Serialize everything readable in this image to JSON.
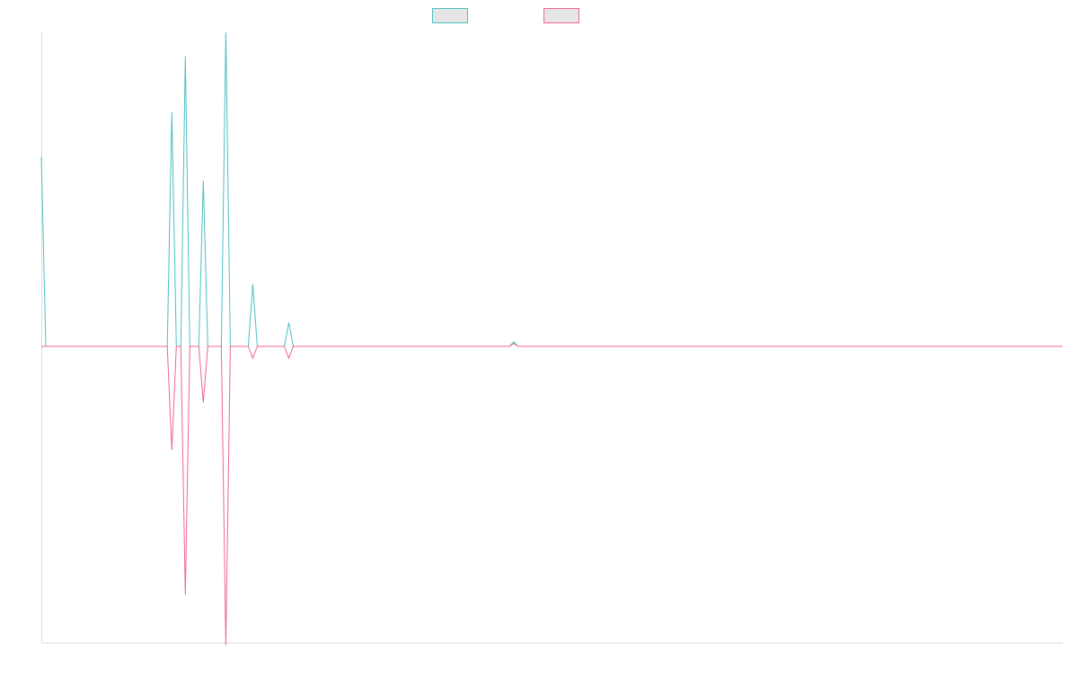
{
  "chart_data": {
    "type": "line",
    "title": "",
    "xlabel": "",
    "ylabel": "",
    "x_count": 228,
    "ylim": [
      -1,
      1
    ],
    "grid": false,
    "legend": "top-center",
    "series": [
      {
        "color": "#4bbfc3",
        "points": [
          [
            0,
            0.64
          ],
          [
            1,
            0
          ],
          [
            28,
            0
          ],
          [
            29,
            0.79
          ],
          [
            30,
            0
          ],
          [
            31,
            0
          ],
          [
            32,
            0.98
          ],
          [
            33,
            0
          ],
          [
            35,
            0
          ],
          [
            36,
            0.56
          ],
          [
            37,
            0
          ],
          [
            40,
            0
          ],
          [
            41,
            1.06
          ],
          [
            42,
            0
          ],
          [
            46,
            0
          ],
          [
            47,
            0.21
          ],
          [
            48,
            0
          ],
          [
            54,
            0
          ],
          [
            55,
            0.08
          ],
          [
            56,
            0
          ],
          [
            104,
            0
          ],
          [
            105,
            0.015
          ],
          [
            106,
            0
          ],
          [
            227,
            0
          ]
        ]
      },
      {
        "color": "#f0668a",
        "points": [
          [
            0,
            0
          ],
          [
            28,
            0
          ],
          [
            29,
            -0.35
          ],
          [
            30,
            0
          ],
          [
            31,
            0
          ],
          [
            32,
            -0.84
          ],
          [
            33,
            0
          ],
          [
            35,
            0
          ],
          [
            36,
            -0.19
          ],
          [
            37,
            0
          ],
          [
            40,
            0
          ],
          [
            41,
            -1.01
          ],
          [
            42,
            0
          ],
          [
            46,
            0
          ],
          [
            47,
            -0.04
          ],
          [
            48,
            0
          ],
          [
            54,
            0
          ],
          [
            55,
            -0.04
          ],
          [
            56,
            0
          ],
          [
            104,
            0
          ],
          [
            105,
            0.01
          ],
          [
            106,
            0
          ],
          [
            227,
            0
          ]
        ]
      }
    ]
  }
}
